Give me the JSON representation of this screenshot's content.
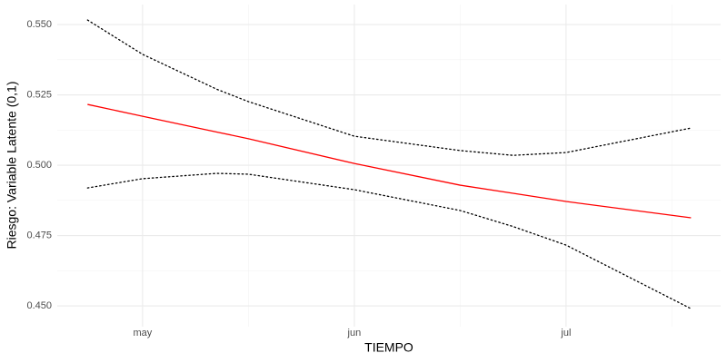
{
  "chart_data": {
    "type": "line",
    "x_label": "TIEMPO",
    "y_label": "Riesgo: Variable Latente (0,1)",
    "x": [
      4.74,
      5,
      5.35,
      5.5,
      6,
      6.5,
      6.75,
      7,
      7.59
    ],
    "series": [
      {
        "color": "#ff0000",
        "dash": "solid",
        "values": [
          0.5216,
          0.5174,
          0.5118,
          0.5094,
          0.5006,
          0.4929,
          0.49,
          0.4871,
          0.4813
        ]
      },
      {
        "color": "#000000",
        "dash": "dotted",
        "values": [
          0.5516,
          0.5394,
          0.527,
          0.5226,
          0.5103,
          0.5052,
          0.5035,
          0.5045,
          0.5132
        ]
      },
      {
        "color": "#000000",
        "dash": "dotted",
        "values": [
          0.4919,
          0.4952,
          0.4971,
          0.4968,
          0.4913,
          0.4839,
          0.4782,
          0.4716,
          0.449
        ]
      }
    ],
    "xlim": [
      4.597,
      7.73
    ],
    "xticks": [
      {
        "value": 5,
        "label": "may"
      },
      {
        "value": 6,
        "label": "jun"
      },
      {
        "value": 7,
        "label": "jul"
      }
    ],
    "ylim": [
      0.4426,
      0.5571
    ],
    "yticks": [
      {
        "value": 0.45,
        "label": "0.450"
      },
      {
        "value": 0.475,
        "label": "0.475"
      },
      {
        "value": 0.5,
        "label": "0.500"
      },
      {
        "value": 0.525,
        "label": "0.525"
      },
      {
        "value": 0.55,
        "label": "0.550"
      }
    ],
    "grid": true
  }
}
